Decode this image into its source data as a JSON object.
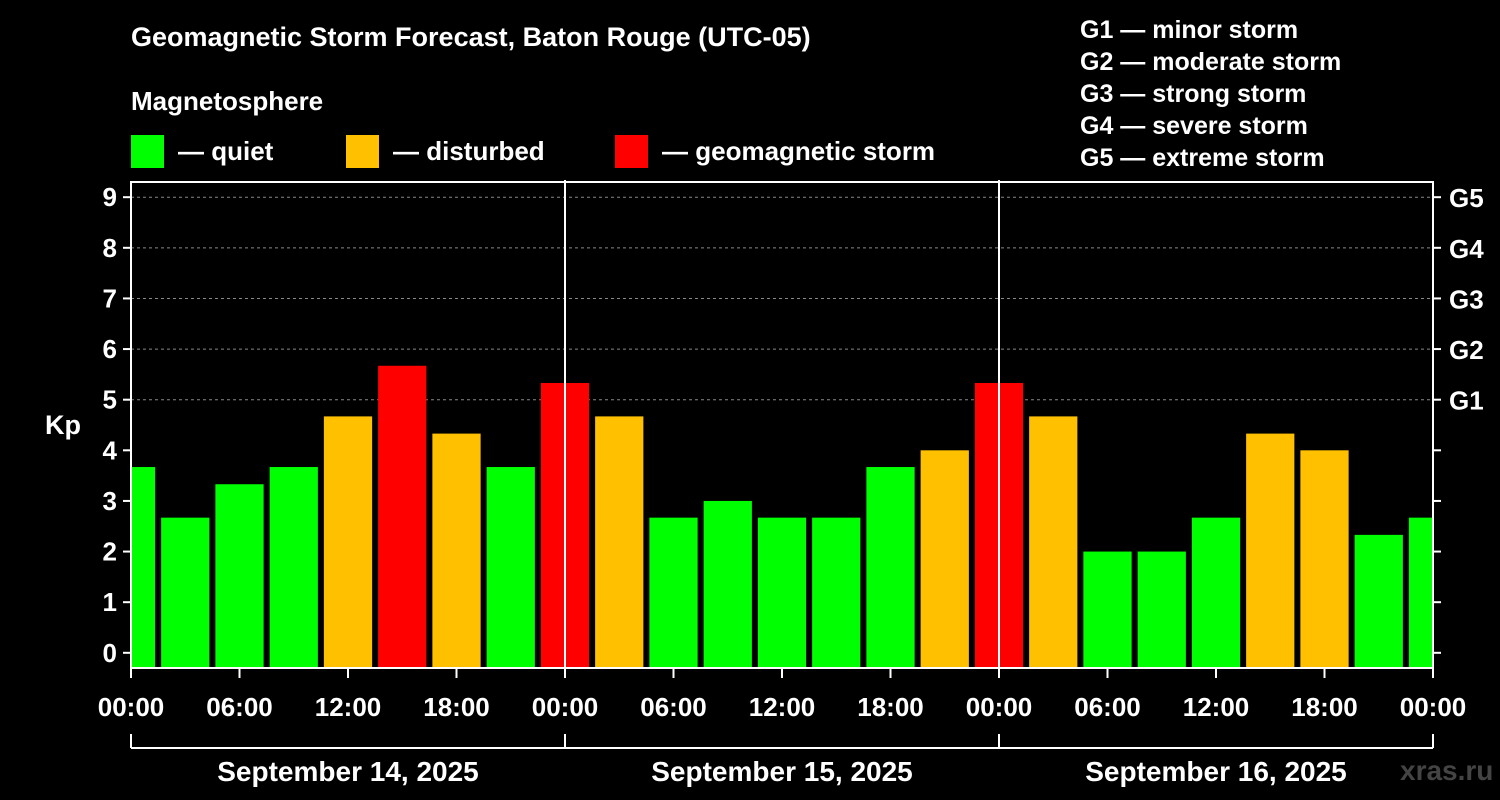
{
  "title": "Geomagnetic Storm Forecast, Baton Rouge (UTC-05)",
  "subtitle": "Magnetosphere",
  "legend": [
    {
      "label": "— quiet",
      "color": "#00ff00"
    },
    {
      "label": "— disturbed",
      "color": "#ffc000"
    },
    {
      "label": "— geomagnetic storm",
      "color": "#ff0000"
    }
  ],
  "storm_scale": [
    "G1 — minor storm",
    "G2 — moderate storm",
    "G3 — strong storm",
    "G4 — severe storm",
    "G5 — extreme storm"
  ],
  "watermark": "xras.ru",
  "colors": {
    "quiet": "#00ff00",
    "disturbed": "#ffc000",
    "storm": "#ff0000",
    "background": "#000000",
    "axis": "#ffffff",
    "grid": "#888888"
  },
  "chart_data": {
    "type": "bar",
    "ylabel": "Kp",
    "ylim": [
      -0.3,
      9.3
    ],
    "yticks": [
      "0",
      "1",
      "2",
      "3",
      "4",
      "5",
      "6",
      "7",
      "8",
      "9"
    ],
    "right_ticks": [
      {
        "kp": 5,
        "label": "G1"
      },
      {
        "kp": 6,
        "label": "G2"
      },
      {
        "kp": 7,
        "label": "G3"
      },
      {
        "kp": 8,
        "label": "G4"
      },
      {
        "kp": 9,
        "label": "G5"
      }
    ],
    "xlim_hours": [
      0,
      72
    ],
    "xtick_labels": [
      "00:00",
      "06:00",
      "12:00",
      "18:00",
      "00:00",
      "06:00",
      "12:00",
      "18:00",
      "00:00",
      "06:00",
      "12:00",
      "18:00",
      "00:00"
    ],
    "days": [
      "September 14, 2025",
      "September 15, 2025",
      "September 16, 2025"
    ],
    "bars": [
      {
        "start": -1.5,
        "end": 1.5,
        "value": 3.67,
        "level": "quiet"
      },
      {
        "start": 1.5,
        "end": 4.5,
        "value": 2.67,
        "level": "quiet"
      },
      {
        "start": 4.5,
        "end": 7.5,
        "value": 3.33,
        "level": "quiet"
      },
      {
        "start": 7.5,
        "end": 10.5,
        "value": 3.67,
        "level": "quiet"
      },
      {
        "start": 10.5,
        "end": 13.5,
        "value": 4.67,
        "level": "disturbed"
      },
      {
        "start": 13.5,
        "end": 16.5,
        "value": 5.67,
        "level": "storm"
      },
      {
        "start": 16.5,
        "end": 19.5,
        "value": 4.33,
        "level": "disturbed"
      },
      {
        "start": 19.5,
        "end": 22.5,
        "value": 3.67,
        "level": "quiet"
      },
      {
        "start": 22.5,
        "end": 25.5,
        "value": 5.33,
        "level": "storm"
      },
      {
        "start": 25.5,
        "end": 28.5,
        "value": 4.67,
        "level": "disturbed"
      },
      {
        "start": 28.5,
        "end": 31.5,
        "value": 2.67,
        "level": "quiet"
      },
      {
        "start": 31.5,
        "end": 34.5,
        "value": 3.0,
        "level": "quiet"
      },
      {
        "start": 34.5,
        "end": 37.5,
        "value": 2.67,
        "level": "quiet"
      },
      {
        "start": 37.5,
        "end": 40.5,
        "value": 2.67,
        "level": "quiet"
      },
      {
        "start": 40.5,
        "end": 43.5,
        "value": 3.67,
        "level": "quiet"
      },
      {
        "start": 43.5,
        "end": 46.5,
        "value": 4.0,
        "level": "disturbed"
      },
      {
        "start": 46.5,
        "end": 49.5,
        "value": 5.33,
        "level": "storm"
      },
      {
        "start": 49.5,
        "end": 52.5,
        "value": 4.67,
        "level": "disturbed"
      },
      {
        "start": 52.5,
        "end": 55.5,
        "value": 2.0,
        "level": "quiet"
      },
      {
        "start": 55.5,
        "end": 58.5,
        "value": 2.0,
        "level": "quiet"
      },
      {
        "start": 58.5,
        "end": 61.5,
        "value": 2.67,
        "level": "quiet"
      },
      {
        "start": 61.5,
        "end": 64.5,
        "value": 4.33,
        "level": "disturbed"
      },
      {
        "start": 64.5,
        "end": 67.5,
        "value": 4.0,
        "level": "disturbed"
      },
      {
        "start": 67.5,
        "end": 70.5,
        "value": 2.33,
        "level": "quiet"
      },
      {
        "start": 70.5,
        "end": 73.5,
        "value": 2.67,
        "level": "quiet"
      }
    ]
  }
}
